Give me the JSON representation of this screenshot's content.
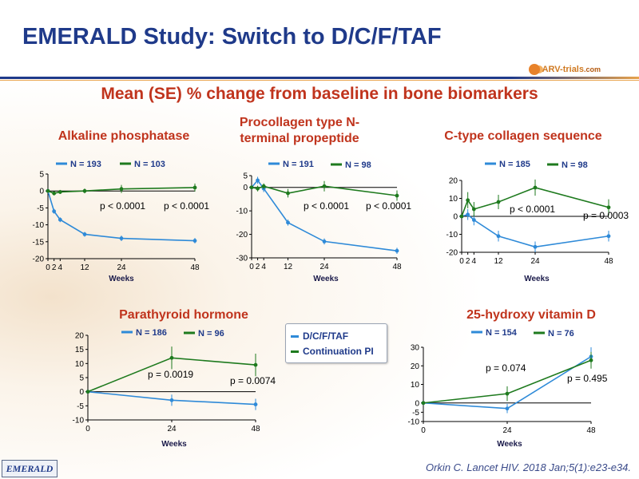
{
  "title": "EMERALD Study: Switch to D/C/F/TAF",
  "subtitle": "Mean (SE) % change from baseline in bone biomarkers",
  "logo": {
    "text": "ARV-trials",
    "suffix": ".com"
  },
  "emerald_logo": "EMERALD",
  "citation": "Orkin C. Lancet HIV. 2018 Jan;5(1):e23-e34.",
  "legend": [
    {
      "label": "D/C/F/TAF",
      "color": "#2e8ad8"
    },
    {
      "label": "Continuation PI",
      "color": "#1e7a1e"
    }
  ],
  "colors": {
    "dcftaf": "#2e8ad8",
    "pi": "#1e7a1e"
  },
  "panels": [
    {
      "title": "Alkaline phosphatase"
    },
    {
      "title": "Procollagen type N-terminal propeptide"
    },
    {
      "title": "C-type collagen sequence"
    },
    {
      "title": "Parathyroid hormone"
    },
    {
      "title": "25-hydroxy vitamin D"
    }
  ],
  "chart_data": [
    {
      "type": "line",
      "title": "Alkaline phosphatase",
      "xlabel": "Weeks",
      "x_ticks": [
        0,
        2,
        4,
        12,
        24,
        48
      ],
      "xlim": [
        0,
        48
      ],
      "ylim": [
        -20,
        5
      ],
      "y_ticks": [
        5,
        0,
        -5,
        -10,
        -15,
        -20
      ],
      "series": [
        {
          "name": "N = 193",
          "x": [
            0,
            2,
            4,
            12,
            24,
            48
          ],
          "y": [
            0,
            -6,
            -8.5,
            -12.8,
            -14,
            -14.7
          ],
          "err": [
            0,
            0.7,
            0.7,
            0.7,
            0.8,
            0.8
          ]
        },
        {
          "name": "N = 103",
          "x": [
            0,
            2,
            4,
            12,
            24,
            48
          ],
          "y": [
            0,
            -0.7,
            -0.3,
            0,
            0.6,
            1
          ],
          "err": [
            0,
            0.6,
            0.6,
            0.7,
            1.2,
            1.2
          ]
        }
      ],
      "annotations": [
        "p < 0.0001",
        "p < 0.0001"
      ]
    },
    {
      "type": "line",
      "title": "Procollagen type N-terminal propeptide",
      "xlabel": "Weeks",
      "x_ticks": [
        0,
        2,
        4,
        12,
        24,
        48
      ],
      "xlim": [
        0,
        48
      ],
      "ylim": [
        -30,
        5
      ],
      "y_ticks": [
        5,
        0,
        -10,
        -20,
        -30
      ],
      "series": [
        {
          "name": "N = 191",
          "x": [
            0,
            2,
            4,
            12,
            24,
            48
          ],
          "y": [
            0,
            3,
            -0.5,
            -15,
            -23,
            -27
          ],
          "err": [
            0,
            1.5,
            1.5,
            1.3,
            1.3,
            1.3
          ]
        },
        {
          "name": "N = 98",
          "x": [
            0,
            2,
            4,
            12,
            24,
            48
          ],
          "y": [
            0,
            -0.5,
            0.5,
            -2.5,
            0.5,
            -3.5
          ],
          "err": [
            0,
            1.2,
            1.2,
            1.8,
            2.2,
            2.2
          ]
        }
      ],
      "annotations": [
        "p < 0.0001",
        "p < 0.0001"
      ]
    },
    {
      "type": "line",
      "title": "C-type collagen sequence",
      "xlabel": "Weeks",
      "x_ticks": [
        0,
        2,
        4,
        12,
        24,
        48
      ],
      "xlim": [
        0,
        48
      ],
      "ylim": [
        -20,
        20
      ],
      "y_ticks": [
        20,
        10,
        0,
        -10,
        -20
      ],
      "series": [
        {
          "name": "N = 185",
          "x": [
            0,
            2,
            4,
            12,
            24,
            48
          ],
          "y": [
            0,
            1,
            -2,
            -11,
            -17,
            -11
          ],
          "err": [
            0,
            3,
            3,
            3,
            3,
            3
          ]
        },
        {
          "name": "N = 98",
          "x": [
            0,
            2,
            4,
            12,
            24,
            48
          ],
          "y": [
            0,
            9,
            4,
            8,
            16,
            5
          ],
          "err": [
            0,
            4.5,
            4,
            4,
            4.5,
            4.5
          ]
        }
      ],
      "annotations": [
        "p < 0.0001",
        "p = 0.0003"
      ]
    },
    {
      "type": "line",
      "title": "Parathyroid hormone",
      "xlabel": "Weeks",
      "x_ticks": [
        0,
        24,
        48
      ],
      "xlim": [
        0,
        48
      ],
      "ylim": [
        -10,
        20
      ],
      "y_ticks": [
        20,
        15,
        10,
        5,
        0,
        -5,
        -10
      ],
      "series": [
        {
          "name": "N = 186",
          "x": [
            0,
            24,
            48
          ],
          "y": [
            0,
            -3,
            -4.5
          ],
          "err": [
            0,
            2,
            2
          ]
        },
        {
          "name": "N = 96",
          "x": [
            0,
            24,
            48
          ],
          "y": [
            0,
            12,
            9.5
          ],
          "err": [
            0,
            4,
            4
          ]
        }
      ],
      "annotations": [
        "p = 0.0019",
        "p = 0.0074"
      ]
    },
    {
      "type": "line",
      "title": "25-hydroxy vitamin D",
      "xlabel": "Weeks",
      "x_ticks": [
        0,
        24,
        48
      ],
      "xlim": [
        0,
        48
      ],
      "ylim": [
        -10,
        30
      ],
      "y_ticks": [
        30,
        20,
        10,
        0,
        -5,
        -10
      ],
      "series": [
        {
          "name": "N = 154",
          "x": [
            0,
            24,
            48
          ],
          "y": [
            0,
            -3,
            25
          ],
          "err": [
            0,
            2.5,
            5
          ]
        },
        {
          "name": "N = 76",
          "x": [
            0,
            24,
            48
          ],
          "y": [
            0,
            5,
            23
          ],
          "err": [
            0,
            4,
            4.5
          ]
        }
      ],
      "annotations": [
        "p = 0.074",
        "p = 0.495"
      ]
    }
  ]
}
